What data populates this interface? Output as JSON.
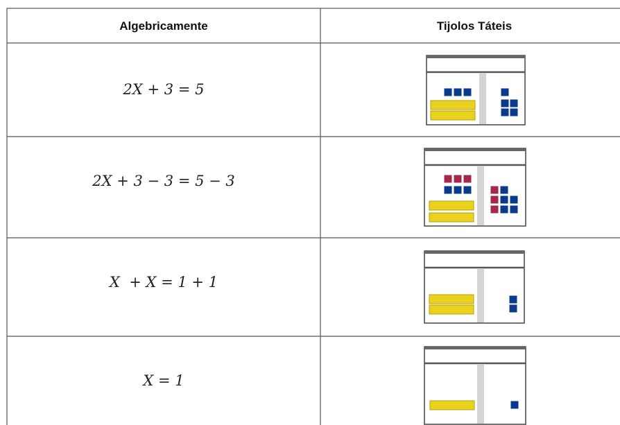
{
  "table": {
    "header": [
      "Algebricamente",
      "Tijolos Táteis"
    ],
    "rows": [
      [
        "2X + 3 = 5"
      ],
      [
        "2X + 3 − 3 = 5 − 3"
      ],
      [
        "X  + X = 1 + 1"
      ],
      [
        "X = 1"
      ]
    ]
  }
}
